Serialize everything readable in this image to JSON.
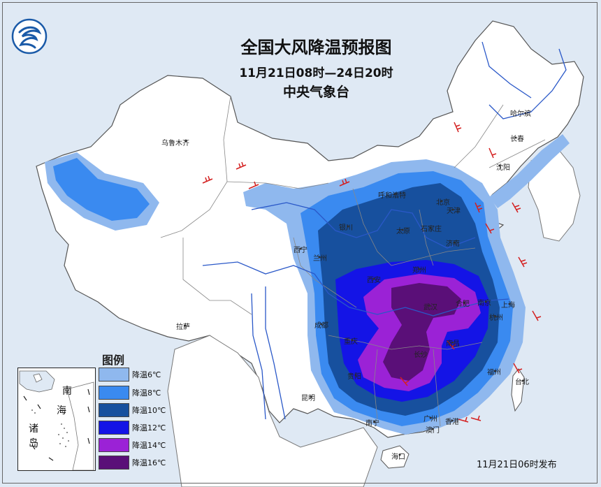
{
  "header": {
    "title": "全国大风降温预报图",
    "period": "11月21日08时—24日20时",
    "issuer": "中央气象台"
  },
  "cities": [
    {
      "key": "urumqi",
      "name": "乌鲁木齐"
    },
    {
      "key": "harbin",
      "name": "哈尔滨"
    },
    {
      "key": "changchun",
      "name": "长春"
    },
    {
      "key": "shenyang",
      "name": "沈阳"
    },
    {
      "key": "hohhot",
      "name": "呼和浩特"
    },
    {
      "key": "beijing",
      "name": "北京"
    },
    {
      "key": "tianjin",
      "name": "天津"
    },
    {
      "key": "yinchuan",
      "name": "银川"
    },
    {
      "key": "taiyuan",
      "name": "太原"
    },
    {
      "key": "shijiazhuang",
      "name": "石家庄"
    },
    {
      "key": "jinan",
      "name": "济南"
    },
    {
      "key": "xining",
      "name": "西宁"
    },
    {
      "key": "lanzhou",
      "name": "兰州"
    },
    {
      "key": "xian",
      "name": "西安"
    },
    {
      "key": "zhengzhou",
      "name": "郑州"
    },
    {
      "key": "hefei",
      "name": "合肥"
    },
    {
      "key": "nanjing",
      "name": "南京"
    },
    {
      "key": "shanghai",
      "name": "上海"
    },
    {
      "key": "hangzhou",
      "name": "杭州"
    },
    {
      "key": "wuhan",
      "name": "武汉"
    },
    {
      "key": "chengdu",
      "name": "成都"
    },
    {
      "key": "chongqing",
      "name": "重庆"
    },
    {
      "key": "lhasa",
      "name": "拉萨"
    },
    {
      "key": "nanchang",
      "name": "南昌"
    },
    {
      "key": "changsha",
      "name": "长沙"
    },
    {
      "key": "guiyang",
      "name": "贵阳"
    },
    {
      "key": "fuzhou",
      "name": "福州"
    },
    {
      "key": "taipei",
      "name": "台北"
    },
    {
      "key": "kunming",
      "name": "昆明"
    },
    {
      "key": "nanning",
      "name": "南宁"
    },
    {
      "key": "guangzhou",
      "name": "广州"
    },
    {
      "key": "hongkong",
      "name": "香港"
    },
    {
      "key": "macau",
      "name": "澳门"
    },
    {
      "key": "haikou",
      "name": "海口"
    }
  ],
  "legend": {
    "title": "图例",
    "items": [
      {
        "label": "降温6℃",
        "color": "#8fb8ee"
      },
      {
        "label": "降温8℃",
        "color": "#3a8af0"
      },
      {
        "label": "降温10℃",
        "color": "#17509e"
      },
      {
        "label": "降温12℃",
        "color": "#1414e6"
      },
      {
        "label": "降温14℃",
        "color": "#9b22d6"
      },
      {
        "label": "降温16℃",
        "color": "#5a0f78"
      }
    ]
  },
  "inset": {
    "chars": [
      "南",
      "海",
      "诸",
      "岛"
    ]
  },
  "footer": {
    "issued": "11月21日06时发布"
  },
  "icons": {
    "logo": "cma-logo-icon",
    "wind": "wind-barb-icon"
  },
  "colors": {
    "sea": "#dfe9f4",
    "land": "#ffffff",
    "border": "#666666",
    "river": "#2a58c8",
    "wind_barb": "#d42020"
  }
}
